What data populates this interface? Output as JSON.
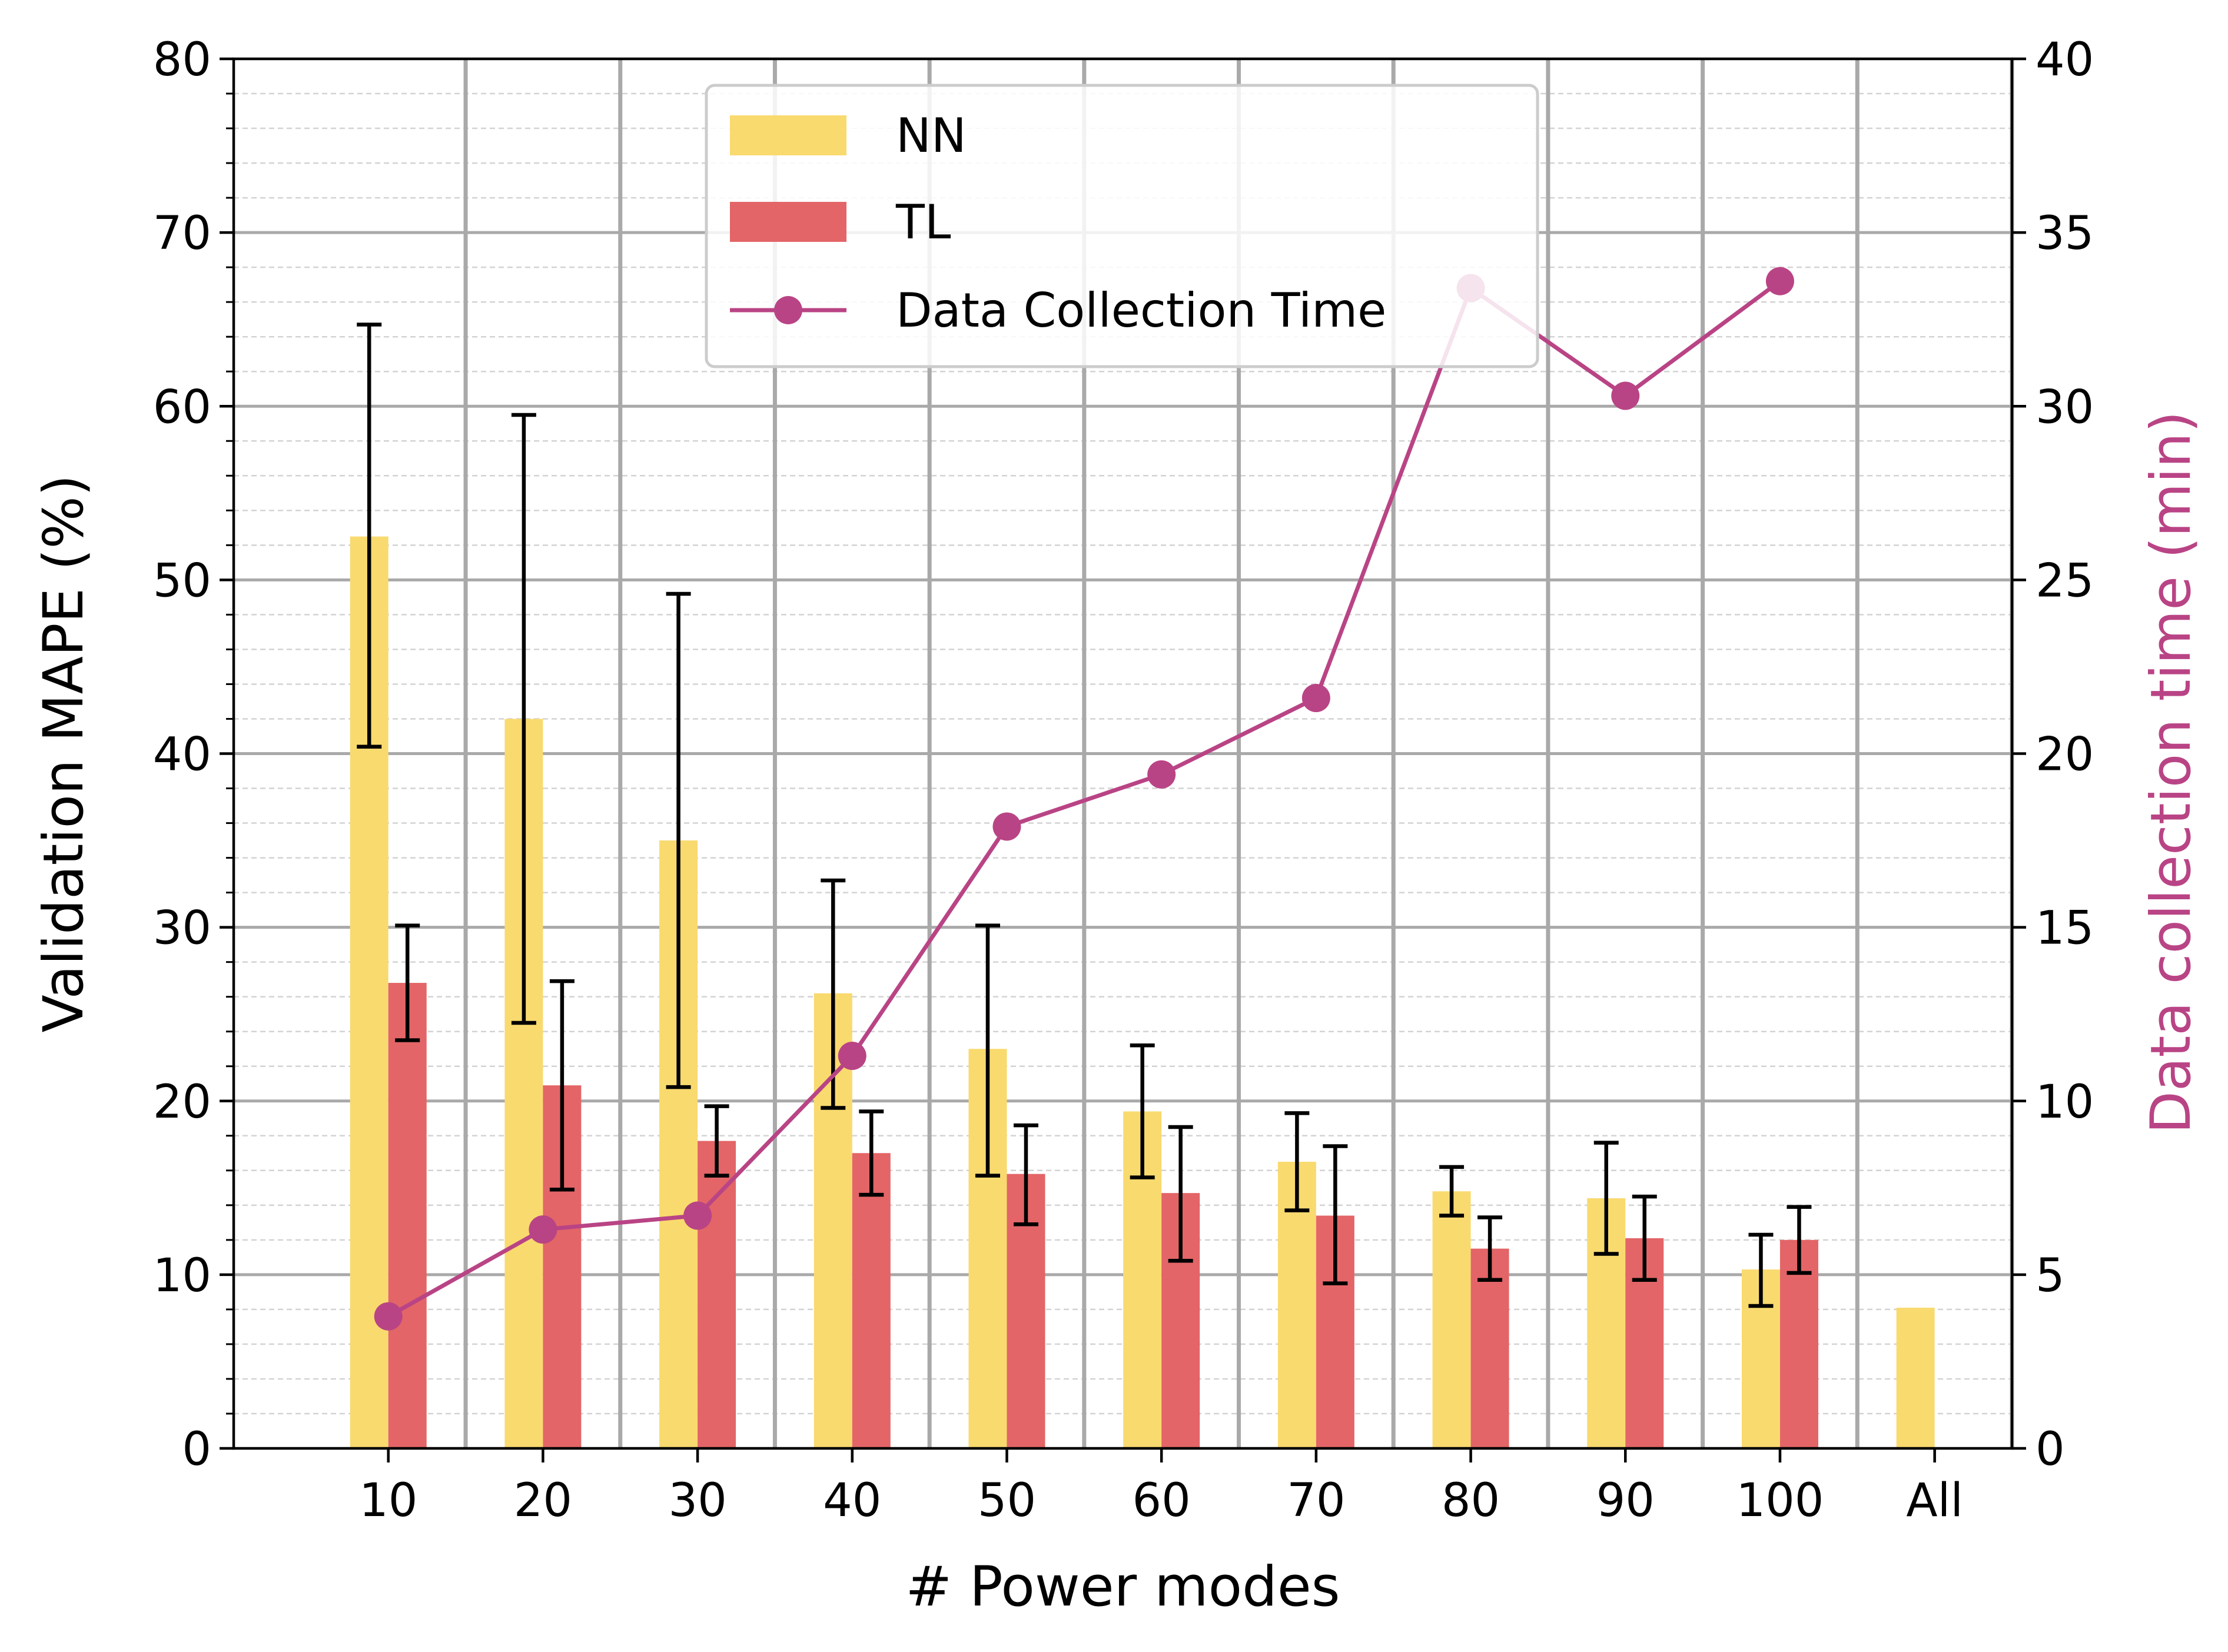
{
  "chart_data": {
    "type": "bar",
    "categories": [
      "10",
      "20",
      "30",
      "40",
      "50",
      "60",
      "70",
      "80",
      "90",
      "100",
      "All"
    ],
    "xlabel": "# Power modes",
    "ylabel": "Validation MAPE (%)",
    "y2label": "Data collection time (min)",
    "ylim": [
      0,
      80
    ],
    "y2lim": [
      0,
      40
    ],
    "yticks": [
      "0",
      "10",
      "20",
      "30",
      "40",
      "50",
      "60",
      "70",
      "80"
    ],
    "y2ticks": [
      "0",
      "5",
      "10",
      "15",
      "20",
      "25",
      "30",
      "35",
      "40"
    ],
    "grid": true,
    "legend_position": "top-center",
    "series": [
      {
        "name": "NN",
        "kind": "bar",
        "color": "#f9da6f",
        "values": [
          52.5,
          42.0,
          35.0,
          26.2,
          23.0,
          19.4,
          16.5,
          14.8,
          14.4,
          10.3,
          8.1
        ],
        "error_low": [
          40.4,
          24.5,
          20.8,
          19.6,
          15.7,
          15.6,
          13.7,
          13.4,
          11.2,
          8.2,
          null
        ],
        "error_high": [
          64.7,
          59.5,
          49.2,
          32.7,
          30.1,
          23.2,
          19.3,
          16.2,
          17.6,
          12.3,
          null
        ]
      },
      {
        "name": "TL",
        "kind": "bar",
        "color": "#e36567",
        "values": [
          26.8,
          20.9,
          17.7,
          17.0,
          15.8,
          14.7,
          13.4,
          11.5,
          12.1,
          12.0,
          null
        ],
        "error_low": [
          23.5,
          14.9,
          15.7,
          14.6,
          12.9,
          10.8,
          9.5,
          9.7,
          9.7,
          10.1,
          null
        ],
        "error_high": [
          30.1,
          26.9,
          19.7,
          19.4,
          18.6,
          18.5,
          17.4,
          13.3,
          14.5,
          13.9,
          null
        ]
      },
      {
        "name": "Data Collection Time",
        "kind": "line",
        "axis": "right",
        "color": "#b94485",
        "values": [
          3.8,
          6.3,
          6.7,
          11.3,
          17.9,
          19.4,
          21.6,
          33.4,
          30.3,
          33.6,
          null
        ]
      }
    ]
  }
}
